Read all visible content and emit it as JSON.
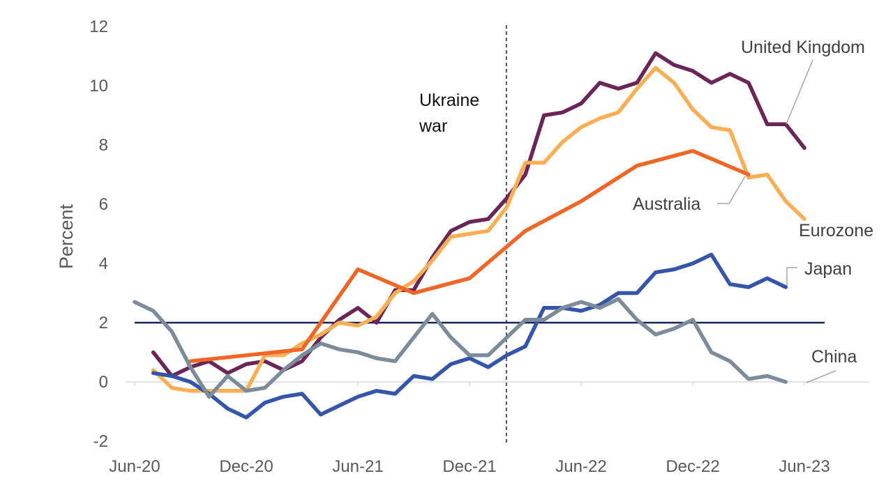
{
  "chart_data": {
    "type": "line",
    "ylabel": "Percent",
    "xlabel": "",
    "ylim": [
      -2,
      12
    ],
    "yticks": [
      -2,
      0,
      2,
      4,
      6,
      8,
      10,
      12
    ],
    "x_tick_labels": [
      "Jun-20",
      "Dec-20",
      "Jun-21",
      "Dec-21",
      "Jun-22",
      "Dec-22",
      "Jun-23"
    ],
    "x_start": "2020-06",
    "x_end": "2023-06",
    "grid": false,
    "legend": "none",
    "reference_lines": [
      {
        "type": "horizontal",
        "value": 2,
        "color": "#12235a"
      },
      {
        "type": "vertical",
        "at": "2022-02",
        "style": "dashed",
        "color": "#12235a",
        "label": "Ukraine war"
      }
    ],
    "series": [
      {
        "name": "United Kingdom",
        "color": "#6b2658",
        "start": "2020-07",
        "values": [
          1.0,
          0.2,
          0.5,
          0.7,
          0.3,
          0.6,
          0.7,
          0.4,
          0.7,
          1.5,
          2.1,
          2.5,
          2.0,
          3.1,
          3.1,
          4.2,
          5.1,
          5.4,
          5.5,
          6.2,
          7.0,
          9.0,
          9.1,
          9.4,
          10.1,
          9.9,
          10.1,
          11.1,
          10.7,
          10.5,
          10.1,
          10.4,
          10.1,
          8.7,
          8.7,
          7.9
        ]
      },
      {
        "name": "Eurozone",
        "color": "#fbaf55",
        "start": "2020-07",
        "values": [
          0.4,
          -0.2,
          -0.3,
          -0.3,
          -0.3,
          -0.3,
          0.9,
          0.9,
          1.3,
          1.6,
          2.0,
          1.9,
          2.2,
          3.0,
          3.4,
          4.1,
          4.9,
          5.0,
          5.1,
          5.9,
          7.4,
          7.4,
          8.1,
          8.6,
          8.9,
          9.1,
          9.9,
          10.6,
          10.1,
          9.2,
          8.6,
          8.5,
          6.9,
          7.0,
          6.1,
          5.5
        ]
      },
      {
        "name": "Australia",
        "color": "#ef6626",
        "start": "2020-09",
        "step_months": 3,
        "values": [
          0.7,
          0.9,
          1.1,
          3.8,
          3.0,
          3.5,
          5.1,
          6.1,
          7.3,
          7.8,
          7.0
        ]
      },
      {
        "name": "Japan",
        "color": "#3455a9",
        "start": "2020-07",
        "values": [
          0.3,
          0.2,
          0.0,
          -0.4,
          -0.9,
          -1.2,
          -0.7,
          -0.5,
          -0.4,
          -1.1,
          -0.8,
          -0.5,
          -0.3,
          -0.4,
          0.2,
          0.1,
          0.6,
          0.8,
          0.5,
          0.9,
          1.2,
          2.5,
          2.5,
          2.4,
          2.6,
          3.0,
          3.0,
          3.7,
          3.8,
          4.0,
          4.3,
          3.3,
          3.2,
          3.5,
          3.2
        ]
      },
      {
        "name": "China",
        "color": "#7d8c9a",
        "start": "2020-06",
        "values": [
          2.7,
          2.4,
          1.7,
          0.5,
          -0.5,
          0.2,
          -0.3,
          -0.2,
          0.4,
          0.9,
          1.3,
          1.1,
          1.0,
          0.8,
          0.7,
          1.5,
          2.3,
          1.5,
          0.9,
          0.9,
          1.5,
          2.1,
          2.1,
          2.5,
          2.7,
          2.5,
          2.8,
          2.1,
          1.6,
          1.8,
          2.1,
          1.0,
          0.7,
          0.1,
          0.2,
          0.0
        ]
      }
    ],
    "annotations": [
      {
        "text": "Ukraine",
        "style": "dark"
      },
      {
        "text": "war",
        "style": "dark"
      },
      {
        "text": "United Kingdom",
        "series": "United Kingdom"
      },
      {
        "text": "Australia",
        "series": "Australia"
      },
      {
        "text": "Eurozone",
        "series": "Eurozone"
      },
      {
        "text": "Japan",
        "series": "Japan"
      },
      {
        "text": "China",
        "series": "China"
      }
    ]
  }
}
